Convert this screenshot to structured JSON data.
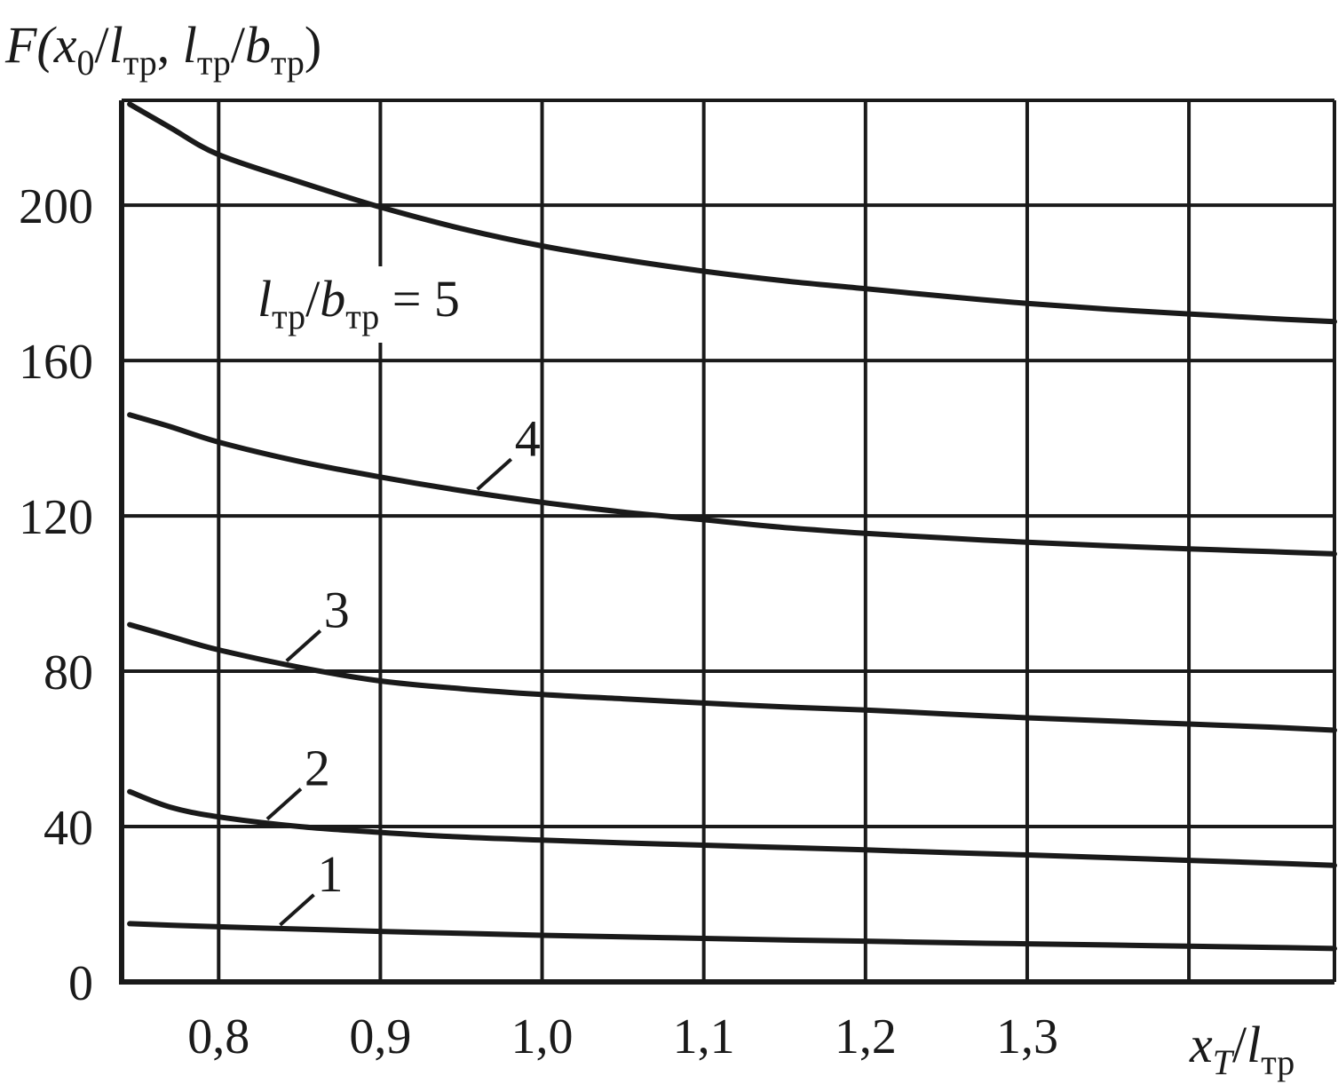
{
  "chart_data": {
    "type": "line",
    "ylabel_parts": {
      "main": "F(",
      "v1": "x",
      "s1": "0",
      "slash1": "/",
      "v2": "l",
      "s2": "тр",
      "comma": ", ",
      "v3": "l",
      "s3": "тр",
      "slash2": "/",
      "v4": "b",
      "s4": "тр",
      "close": ")"
    },
    "xlabel_parts": {
      "v1": "x",
      "s1": "T",
      "slash": "/",
      "v2": "l",
      "s2": "тр"
    },
    "annotation_parts": {
      "v1": "l",
      "s1": "тр",
      "slash": "/",
      "v2": "b",
      "s2": "тр",
      "eq": " = 5"
    },
    "xlim": [
      0.74,
      1.49
    ],
    "ylim": [
      0,
      227
    ],
    "x_ticks": [
      0.8,
      0.9,
      1.0,
      1.1,
      1.2,
      1.3,
      1.4
    ],
    "x_tick_labels": [
      "0,8",
      "0,9",
      "1,0",
      "1,1",
      "1,2",
      "1,3",
      ""
    ],
    "y_ticks": [
      0,
      40,
      80,
      120,
      160,
      200
    ],
    "y_tick_labels": [
      "0",
      "40",
      "80",
      "120",
      "160",
      "200"
    ],
    "grid": true,
    "x": [
      0.745,
      0.77,
      0.8,
      0.85,
      0.9,
      0.95,
      1.0,
      1.05,
      1.1,
      1.15,
      1.2,
      1.25,
      1.3,
      1.35,
      1.4,
      1.45,
      1.49
    ],
    "series": [
      {
        "name": "1",
        "values": [
          15,
          14.6,
          14.2,
          13.6,
          13.0,
          12.5,
          12.0,
          11.6,
          11.2,
          10.8,
          10.5,
          10.1,
          9.8,
          9.5,
          9.2,
          8.9,
          8.6
        ]
      },
      {
        "name": "2",
        "values": [
          49,
          45,
          42.5,
          40,
          38.5,
          37.3,
          36.5,
          35.8,
          35.2,
          34.6,
          34,
          33.3,
          32.7,
          32,
          31.3,
          30.6,
          30
        ]
      },
      {
        "name": "3",
        "values": [
          92,
          89,
          85.5,
          81,
          77.5,
          75.5,
          74,
          72.9,
          71.8,
          70.8,
          70,
          69,
          68,
          67.2,
          66.4,
          65.6,
          64.8
        ]
      },
      {
        "name": "4",
        "values": [
          146,
          143,
          139,
          134,
          130,
          126.5,
          123.5,
          121,
          119,
          117,
          115.5,
          114.3,
          113.2,
          112.3,
          111.5,
          110.8,
          110.2
        ]
      },
      {
        "name": "5",
        "values": [
          226,
          220,
          213,
          206,
          199.5,
          194,
          189.5,
          186,
          183,
          180.5,
          178.5,
          176.5,
          174.7,
          173.2,
          172,
          170.8,
          170
        ]
      }
    ]
  }
}
